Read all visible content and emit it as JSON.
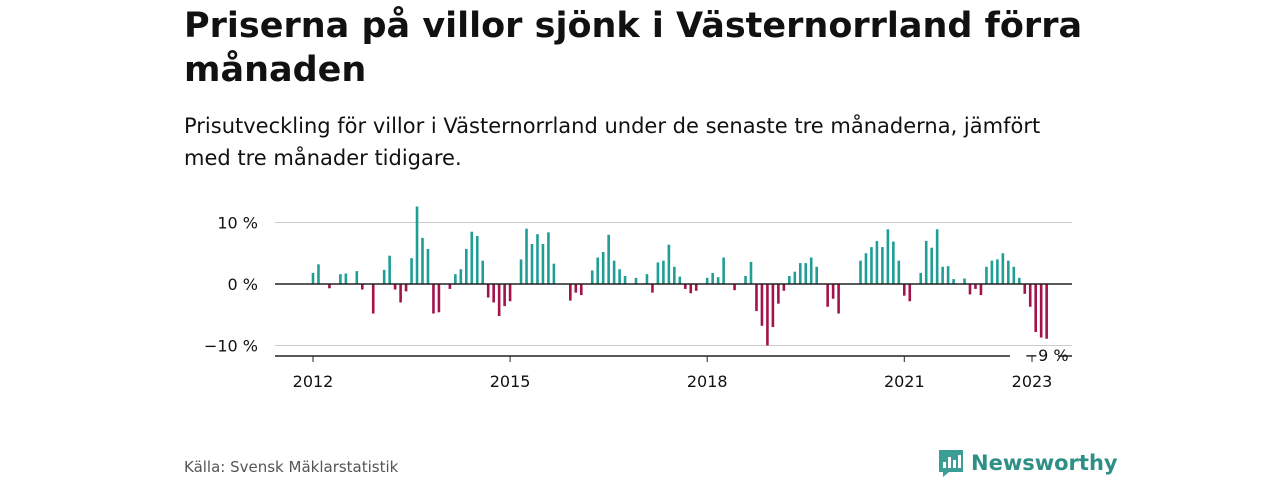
{
  "title": "Priserna på villor sjönk i Västernorrland förra månaden",
  "subtitle": "Prisutveckling för villor i Västernorrland under de senaste tre månaderna, jämfört med tre månader tidigare.",
  "source": "Källa: Svensk Mäklarstatistik",
  "brand": "Newsworthy",
  "colors": {
    "positive": "#1f9e96",
    "negative": "#a3134a",
    "grid": "#cccccc",
    "axis": "#222222"
  },
  "chart_data": {
    "type": "bar",
    "x_start": "2012-01",
    "x_ticks": [
      "2012",
      "2015",
      "2018",
      "2021",
      "2023"
    ],
    "y_ticks": [
      "10 %",
      "0 %",
      "−10 %"
    ],
    "ylim": [
      -12,
      13
    ],
    "last_value_label": "−9 %",
    "grid": true,
    "series": [
      {
        "values": [
          1.8,
          3.2,
          0,
          -0.7,
          0,
          1.6,
          1.7,
          0,
          2.1,
          -0.9,
          0,
          -4.8,
          0,
          2.3,
          4.6,
          -0.9,
          -3.0,
          -1.2,
          4.2,
          12.6,
          7.5,
          5.7,
          -4.8,
          -4.6,
          0,
          -0.8,
          1.6,
          2.4,
          5.7,
          8.5,
          7.8,
          3.8,
          -2.2,
          -3.0,
          -5.2,
          -3.6,
          -2.8,
          0,
          4.0,
          9.0,
          6.5,
          8.1,
          6.5,
          8.4,
          3.3,
          0,
          0,
          -2.7,
          -1.4,
          -1.8,
          0,
          2.2,
          4.3,
          5.2,
          8.0,
          3.8,
          2.4,
          1.3,
          0,
          1.0,
          0,
          1.6,
          -1.4,
          3.5,
          3.8,
          6.4,
          2.8,
          1.2,
          -0.8,
          -1.5,
          -1.1,
          0,
          1.0,
          1.8,
          1.1,
          4.3,
          0,
          -1.0,
          0,
          1.3,
          3.6,
          -4.4,
          -6.8,
          -10.0,
          -7.0,
          -3.2,
          -1.1,
          1.3,
          2.0,
          3.4,
          3.4,
          4.3,
          2.8,
          0,
          -3.7,
          -2.4,
          -4.8,
          0,
          0,
          0,
          3.8,
          5.0,
          6.0,
          7.0,
          6.0,
          8.9,
          6.9,
          3.8,
          -1.9,
          -2.8,
          0,
          1.8,
          7.0,
          5.9,
          8.9,
          2.8,
          2.9,
          0.8,
          0,
          0.9,
          -1.7,
          -0.8,
          -1.8,
          2.8,
          3.8,
          4.0,
          5.0,
          3.8,
          2.8,
          1.0,
          -1.6,
          -3.7,
          -7.8,
          -8.7,
          -8.9
        ]
      }
    ]
  }
}
